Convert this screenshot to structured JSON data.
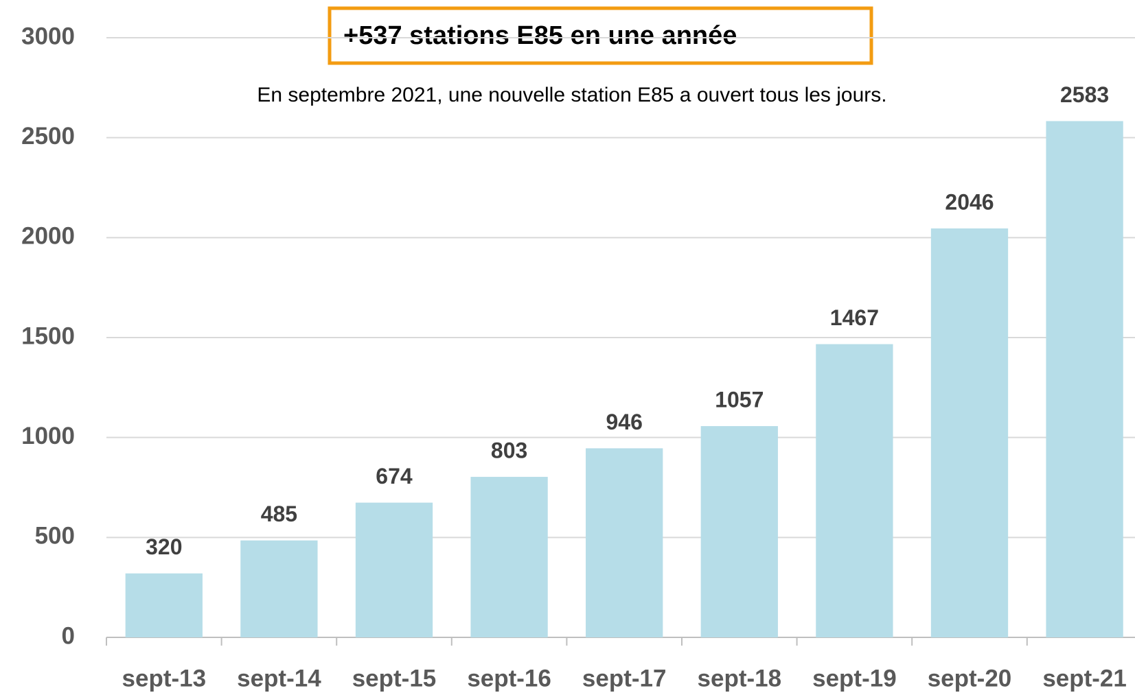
{
  "chart_data": {
    "type": "bar",
    "title": "+537 stations E85 en une année",
    "subtitle": "En septembre 2021, une nouvelle station E85 a ouvert tous les jours.",
    "categories": [
      "sept-13",
      "sept-14",
      "sept-15",
      "sept-16",
      "sept-17",
      "sept-18",
      "sept-19",
      "sept-20",
      "sept-21"
    ],
    "values": [
      320,
      485,
      674,
      803,
      946,
      1057,
      1467,
      2046,
      2583
    ],
    "color": "#b6dde8",
    "ylim": [
      0,
      3000
    ],
    "yticks": [
      0,
      500,
      1000,
      1500,
      2000,
      2500,
      3000
    ],
    "grid": true
  }
}
